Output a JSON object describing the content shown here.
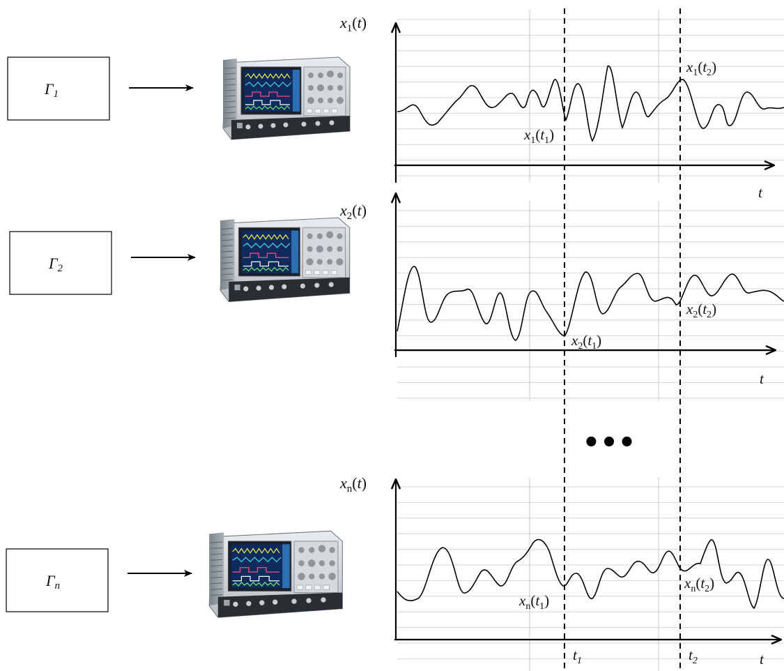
{
  "channels": [
    {
      "generator_main": "Γ",
      "generator_sub": "1",
      "signal_var": "x",
      "signal_sub": "1",
      "arg": "t",
      "point_t1": {
        "var": "x",
        "sub": "1",
        "time_var": "t",
        "time_sub": "1"
      },
      "point_t2": {
        "var": "x",
        "sub": "1",
        "time_var": "t",
        "time_sub": "2"
      },
      "time_axis_label": "t"
    },
    {
      "generator_main": "Γ",
      "generator_sub": "2",
      "signal_var": "x",
      "signal_sub": "2",
      "arg": "t",
      "point_t1": {
        "var": "x",
        "sub": "2",
        "time_var": "t",
        "time_sub": "1"
      },
      "point_t2": {
        "var": "x",
        "sub": "2",
        "time_var": "t",
        "time_sub": "2"
      },
      "time_axis_label": "t"
    },
    {
      "generator_main": "Γ",
      "generator_sub": "n",
      "signal_var": "x",
      "signal_sub": "n",
      "arg": "t",
      "point_t1": {
        "var": "x",
        "sub": "n",
        "time_var": "t",
        "time_sub": "1"
      },
      "point_t2": {
        "var": "x",
        "sub": "n",
        "time_var": "t",
        "time_sub": "2"
      },
      "time_axis_label": "t"
    }
  ],
  "ellipsis": "•••",
  "time_markers": {
    "t1": {
      "var": "t",
      "sub": "1"
    },
    "t2": {
      "var": "t",
      "sub": "2"
    }
  },
  "device_icon": "oscilloscope-icon"
}
